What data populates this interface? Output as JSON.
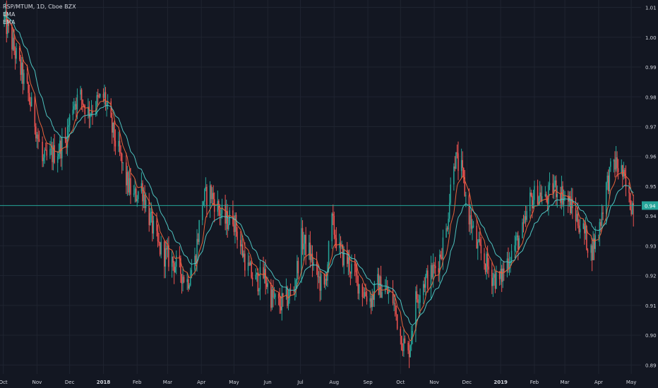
{
  "header": {
    "symbol_line": "RSP/MTUM, 1D, Cboe BZX",
    "indicators": [
      "EMA",
      "EMA"
    ]
  },
  "price_tag": "0.94",
  "colors": {
    "background": "#131722",
    "grid": "#1f2430",
    "up": "#26a69a",
    "down": "#ef5350",
    "ema_fast": "#e8623a",
    "ema_slow": "#4dc3c0",
    "price_line": "#26a69a",
    "text": "#d1d4dc"
  },
  "chart_data": {
    "type": "candlestick",
    "title": "RSP/MTUM, 1D, Cboe BZX",
    "x_tick_labels": [
      "Oct",
      "Nov",
      "Dec",
      "2018",
      "Feb",
      "Mar",
      "Apr",
      "May",
      "Jun",
      "Jul",
      "Aug",
      "Sep",
      "Oct",
      "Nov",
      "Dec",
      "2019",
      "Feb",
      "Mar",
      "Apr",
      "May"
    ],
    "y_tick_labels": [
      "1.01",
      "1.00",
      "0.99",
      "0.98",
      "0.97",
      "0.96",
      "0.95",
      "0.94",
      "0.93",
      "0.92",
      "0.91",
      "0.90",
      "0.89"
    ],
    "ylim": [
      0.887,
      1.0125
    ],
    "last_price": 0.9435,
    "series": [
      {
        "kind": "price",
        "points": [
          {
            "x": "2017-10-02",
            "y": 1.006
          },
          {
            "x": "2017-10-09",
            "y": 0.998
          },
          {
            "x": "2017-10-16",
            "y": 0.99
          },
          {
            "x": "2017-10-23",
            "y": 0.982
          },
          {
            "x": "2017-10-30",
            "y": 0.972
          },
          {
            "x": "2017-11-06",
            "y": 0.958
          },
          {
            "x": "2017-11-13",
            "y": 0.96
          },
          {
            "x": "2017-11-20",
            "y": 0.962
          },
          {
            "x": "2017-11-27",
            "y": 0.965
          },
          {
            "x": "2017-12-04",
            "y": 0.978
          },
          {
            "x": "2017-12-11",
            "y": 0.98
          },
          {
            "x": "2017-12-18",
            "y": 0.975
          },
          {
            "x": "2017-12-26",
            "y": 0.978
          },
          {
            "x": "2018-01-02",
            "y": 0.98
          },
          {
            "x": "2018-01-08",
            "y": 0.97
          },
          {
            "x": "2018-01-16",
            "y": 0.96
          },
          {
            "x": "2018-01-22",
            "y": 0.952
          },
          {
            "x": "2018-01-29",
            "y": 0.946
          },
          {
            "x": "2018-02-05",
            "y": 0.95
          },
          {
            "x": "2018-02-12",
            "y": 0.94
          },
          {
            "x": "2018-02-20",
            "y": 0.93
          },
          {
            "x": "2018-02-26",
            "y": 0.927
          },
          {
            "x": "2018-03-05",
            "y": 0.925
          },
          {
            "x": "2018-03-12",
            "y": 0.922
          },
          {
            "x": "2018-03-19",
            "y": 0.918
          },
          {
            "x": "2018-03-26",
            "y": 0.925
          },
          {
            "x": "2018-04-02",
            "y": 0.945
          },
          {
            "x": "2018-04-09",
            "y": 0.948
          },
          {
            "x": "2018-04-16",
            "y": 0.943
          },
          {
            "x": "2018-04-23",
            "y": 0.938
          },
          {
            "x": "2018-04-30",
            "y": 0.94
          },
          {
            "x": "2018-05-07",
            "y": 0.93
          },
          {
            "x": "2018-05-14",
            "y": 0.922
          },
          {
            "x": "2018-05-21",
            "y": 0.918
          },
          {
            "x": "2018-05-29",
            "y": 0.92
          },
          {
            "x": "2018-06-04",
            "y": 0.913
          },
          {
            "x": "2018-06-11",
            "y": 0.91
          },
          {
            "x": "2018-06-18",
            "y": 0.912
          },
          {
            "x": "2018-06-25",
            "y": 0.915
          },
          {
            "x": "2018-07-02",
            "y": 0.932
          },
          {
            "x": "2018-07-09",
            "y": 0.928
          },
          {
            "x": "2018-07-16",
            "y": 0.92
          },
          {
            "x": "2018-07-23",
            "y": 0.915
          },
          {
            "x": "2018-07-30",
            "y": 0.938
          },
          {
            "x": "2018-08-06",
            "y": 0.928
          },
          {
            "x": "2018-08-13",
            "y": 0.925
          },
          {
            "x": "2018-08-20",
            "y": 0.92
          },
          {
            "x": "2018-08-27",
            "y": 0.915
          },
          {
            "x": "2018-09-04",
            "y": 0.912
          },
          {
            "x": "2018-09-10",
            "y": 0.917
          },
          {
            "x": "2018-09-17",
            "y": 0.915
          },
          {
            "x": "2018-09-24",
            "y": 0.912
          },
          {
            "x": "2018-10-01",
            "y": 0.9
          },
          {
            "x": "2018-10-08",
            "y": 0.893
          },
          {
            "x": "2018-10-15",
            "y": 0.912
          },
          {
            "x": "2018-10-22",
            "y": 0.918
          },
          {
            "x": "2018-10-29",
            "y": 0.92
          },
          {
            "x": "2018-11-05",
            "y": 0.925
          },
          {
            "x": "2018-11-12",
            "y": 0.935
          },
          {
            "x": "2018-11-19",
            "y": 0.96
          },
          {
            "x": "2018-11-26",
            "y": 0.955
          },
          {
            "x": "2018-12-03",
            "y": 0.94
          },
          {
            "x": "2018-12-10",
            "y": 0.93
          },
          {
            "x": "2018-12-17",
            "y": 0.925
          },
          {
            "x": "2018-12-24",
            "y": 0.92
          },
          {
            "x": "2018-12-31",
            "y": 0.918
          },
          {
            "x": "2019-01-07",
            "y": 0.925
          },
          {
            "x": "2019-01-14",
            "y": 0.93
          },
          {
            "x": "2019-01-22",
            "y": 0.935
          },
          {
            "x": "2019-01-28",
            "y": 0.945
          },
          {
            "x": "2019-02-04",
            "y": 0.948
          },
          {
            "x": "2019-02-11",
            "y": 0.945
          },
          {
            "x": "2019-02-19",
            "y": 0.95
          },
          {
            "x": "2019-02-25",
            "y": 0.948
          },
          {
            "x": "2019-03-04",
            "y": 0.945
          },
          {
            "x": "2019-03-11",
            "y": 0.94
          },
          {
            "x": "2019-03-18",
            "y": 0.935
          },
          {
            "x": "2019-03-25",
            "y": 0.928
          },
          {
            "x": "2019-04-01",
            "y": 0.935
          },
          {
            "x": "2019-04-08",
            "y": 0.95
          },
          {
            "x": "2019-04-15",
            "y": 0.958
          },
          {
            "x": "2019-04-22",
            "y": 0.955
          },
          {
            "x": "2019-04-29",
            "y": 0.945
          },
          {
            "x": "2019-05-03",
            "y": 0.9435
          }
        ]
      },
      {
        "kind": "ema",
        "label": "EMA",
        "period": 9
      },
      {
        "kind": "ema",
        "label": "EMA",
        "period": 21
      }
    ]
  }
}
